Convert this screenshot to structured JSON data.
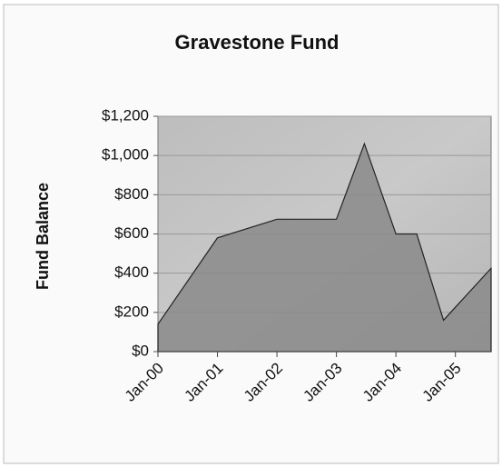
{
  "chart_data": {
    "type": "area",
    "title": "Gravestone Fund",
    "y_label": "Fund Balance",
    "x": [
      2000,
      2001,
      2002,
      2003,
      2003.47,
      2004,
      2004.35,
      2004.8,
      2005.6
    ],
    "values": [
      140,
      580,
      675,
      675,
      1060,
      600,
      600,
      160,
      425
    ],
    "color": "#8a8a8a",
    "xlim": [
      2000,
      2005.6
    ],
    "xticks": [
      {
        "value": 2000,
        "label": "Jan-00"
      },
      {
        "value": 2001,
        "label": "Jan-01"
      },
      {
        "value": 2002,
        "label": "Jan-02"
      },
      {
        "value": 2003,
        "label": "Jan-03"
      },
      {
        "value": 2004,
        "label": "Jan-04"
      },
      {
        "value": 2005,
        "label": "Jan-05"
      }
    ],
    "ylim": [
      0,
      1200
    ],
    "yticks": [
      {
        "value": 0,
        "label": "$0"
      },
      {
        "value": 200,
        "label": "$200"
      },
      {
        "value": 400,
        "label": "$400"
      },
      {
        "value": 600,
        "label": "$600"
      },
      {
        "value": 800,
        "label": "$800"
      },
      {
        "value": 1000,
        "label": "$1,000"
      },
      {
        "value": 1200,
        "label": "$1,200"
      }
    ],
    "grid": true
  }
}
